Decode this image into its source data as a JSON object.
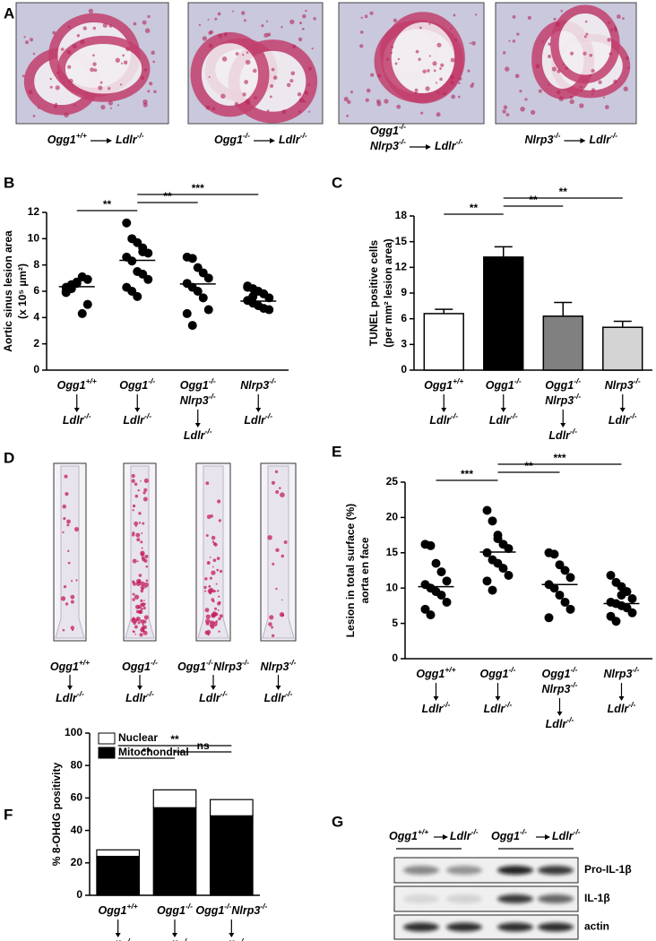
{
  "panel_a": {
    "label": "A",
    "captions": [
      {
        "lines": [
          "Ogg1+/+"
        ],
        "target": "Ldlr-/-"
      },
      {
        "lines": [
          "Ogg1-/-"
        ],
        "target": "Ldlr-/-"
      },
      {
        "lines": [
          "Ogg1-/-",
          "Nlrp3-/-"
        ],
        "target": "Ldlr-/-"
      },
      {
        "lines": [
          "Nlrp3-/-"
        ],
        "target": "Ldlr-/-"
      }
    ]
  },
  "chart_data": [
    {
      "panel_label": "B",
      "type": "dot",
      "ylabel": [
        "Aortic sinus lesion area",
        "(x 10⁵ µm²)"
      ],
      "categories": [
        [
          "Ogg1+/+",
          "Ldlr-/-"
        ],
        [
          "Ogg1-/-",
          "Ldlr-/-"
        ],
        [
          "Ogg1-/-",
          "Nlrp3-/-",
          "Ldlr-/-"
        ],
        [
          "Nlrp3-/-",
          "Ldlr-/-"
        ]
      ],
      "groups": [
        [
          6.0,
          6.5,
          6.7,
          7.1,
          6.9,
          5.9,
          6.2,
          6.6,
          4.3,
          5.0,
          6.3,
          6.4
        ],
        [
          11.2,
          10.0,
          9.7,
          9.3,
          8.9,
          8.6,
          8.3,
          7.5,
          7.3,
          6.9,
          6.3,
          6.0,
          5.6,
          9.0
        ],
        [
          8.6,
          8.5,
          7.8,
          7.4,
          7.0,
          6.6,
          6.3,
          6.0,
          5.5,
          4.6,
          4.3,
          3.4
        ],
        [
          6.4,
          6.2,
          6.0,
          5.8,
          5.5,
          5.3,
          5.1,
          4.9,
          4.7,
          4.6,
          6.3,
          5.6
        ]
      ],
      "means": [
        6.35,
        8.35,
        6.55,
        5.25
      ],
      "ylim": [
        0,
        12
      ],
      "yticks": [
        0,
        2,
        4,
        6,
        8,
        10,
        12
      ],
      "significance": [
        {
          "between": [
            0,
            1
          ],
          "label": "**"
        },
        {
          "between": [
            1,
            2
          ],
          "label": "**"
        },
        {
          "between": [
            1,
            3
          ],
          "label": "***"
        }
      ]
    },
    {
      "panel_label": "C",
      "type": "bar",
      "ylabel": [
        "TUNEL positive cells",
        "(per mm² lesion area)"
      ],
      "categories": [
        [
          "Ogg1+/+",
          "Ldlr-/-"
        ],
        [
          "Ogg1-/-",
          "Ldlr-/-"
        ],
        [
          "Ogg1-/-",
          "Nlrp3-/-",
          "Ldlr-/-"
        ],
        [
          "Nlrp3-/-",
          "Ldlr-/-"
        ]
      ],
      "values": [
        6.6,
        13.2,
        6.3,
        5.0
      ],
      "errors": [
        0.5,
        1.2,
        1.6,
        0.7
      ],
      "colors": [
        "#ffffff",
        "#000000",
        "#808080",
        "#d4d4d4"
      ],
      "ylim": [
        0,
        18
      ],
      "yticks": [
        0,
        3,
        6,
        9,
        12,
        15,
        18
      ],
      "significance": [
        {
          "between": [
            0,
            1
          ],
          "label": "**"
        },
        {
          "between": [
            1,
            2
          ],
          "label": "**"
        },
        {
          "between": [
            1,
            3
          ],
          "label": "**"
        }
      ]
    },
    {
      "panel_label": "E",
      "type": "dot",
      "ylabel": [
        "Lesion in total surface (%)",
        "aorta en face"
      ],
      "categories": [
        [
          "Ogg1+/+",
          "Ldlr-/-"
        ],
        [
          "Ogg1-/-",
          "Ldlr-/-"
        ],
        [
          "Ogg1-/-",
          "Nlrp3-/-",
          "Ldlr-/-"
        ],
        [
          "Nlrp3-/-",
          "Ldlr-/-"
        ]
      ],
      "groups": [
        [
          16.2,
          16.0,
          13.5,
          12.3,
          11.0,
          10.5,
          10.0,
          9.5,
          9.0,
          8.0,
          7.0,
          6.2
        ],
        [
          21.0,
          19.5,
          17.0,
          16.2,
          15.6,
          15.0,
          14.0,
          13.5,
          12.8,
          11.8,
          11.0,
          9.7,
          17.5
        ],
        [
          15.0,
          14.8,
          13.3,
          12.5,
          11.5,
          10.5,
          10.0,
          9.0,
          8.0,
          7.0,
          5.8
        ],
        [
          11.8,
          10.8,
          10.2,
          9.5,
          8.5,
          8.0,
          7.8,
          7.5,
          7.2,
          6.5,
          6.0,
          5.3,
          9.0
        ]
      ],
      "means": [
        10.2,
        15.1,
        10.5,
        7.8
      ],
      "ylim": [
        0,
        25
      ],
      "yticks": [
        0,
        5,
        10,
        15,
        20,
        25
      ],
      "significance": [
        {
          "between": [
            0,
            1
          ],
          "label": "***"
        },
        {
          "between": [
            1,
            2
          ],
          "label": "**"
        },
        {
          "between": [
            1,
            3
          ],
          "label": "***"
        }
      ]
    },
    {
      "panel_label": "F",
      "type": "stacked_bar",
      "ylabel": [
        "% 8-OHdG positivity"
      ],
      "categories": [
        [
          "Ogg1+/+",
          "Ldlr-/-"
        ],
        [
          "Ogg1-/-",
          "Ldlr-/-"
        ],
        [
          "Ogg1-/-Nlrp3-/-",
          "Ldlr-/-"
        ]
      ],
      "series": [
        {
          "name": "Mitochondrial",
          "color": "#000000",
          "values": [
            24,
            54,
            49
          ]
        },
        {
          "name": "Nuclear",
          "color": "#ffffff",
          "values": [
            4,
            11,
            10
          ]
        }
      ],
      "ylim": [
        0,
        100
      ],
      "yticks": [
        0,
        20,
        40,
        60,
        80,
        100
      ],
      "significance": [
        {
          "between": [
            0,
            1
          ],
          "label": "**"
        },
        {
          "between": [
            1,
            2
          ],
          "label": "ns"
        },
        {
          "between": [
            0,
            2
          ],
          "label": "**"
        }
      ]
    }
  ],
  "panel_d": {
    "label": "D",
    "captions": [
      [
        "Ogg1+/+",
        "Ldlr-/-"
      ],
      [
        "Ogg1-/-",
        "Ldlr-/-"
      ],
      [
        "Ogg1-/-Nlrp3-/-",
        "Ldlr-/-"
      ],
      [
        "Nlrp3-/-",
        "Ldlr-/-"
      ]
    ]
  },
  "panel_g": {
    "label": "G",
    "groups": [
      {
        "donor": "Ogg1+/+",
        "recipient": "Ldlr-/-"
      },
      {
        "donor": "Ogg1-/-",
        "recipient": "Ldlr-/-"
      }
    ],
    "bands": [
      "Pro-IL-1β",
      "IL-1β",
      "actin"
    ]
  }
}
